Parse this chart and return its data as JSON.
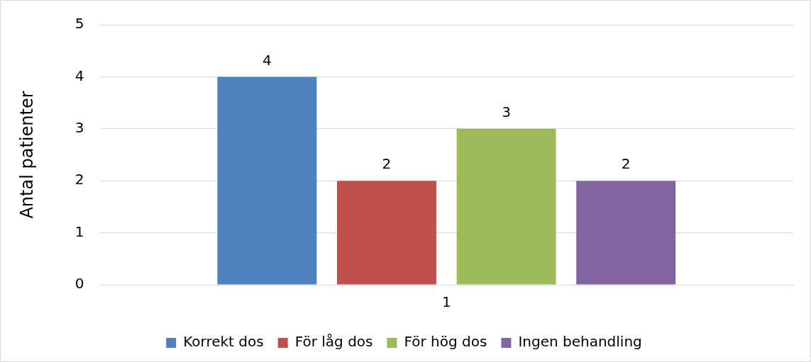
{
  "chart_data": {
    "type": "bar",
    "ylabel": "Antal patienter",
    "categories": [
      "1"
    ],
    "series": [
      {
        "name": "Korrekt dos",
        "color": "#4f81bd",
        "values": [
          4
        ]
      },
      {
        "name": "För låg dos",
        "color": "#c0504d",
        "values": [
          2
        ]
      },
      {
        "name": "För hög dos",
        "color": "#9bbb59",
        "values": [
          3
        ]
      },
      {
        "name": "Ingen behandling",
        "color": "#8064a2",
        "values": [
          2
        ]
      }
    ],
    "ylim": [
      0,
      5
    ],
    "yticks": [
      0,
      1,
      2,
      3,
      4,
      5
    ],
    "grid": "y",
    "legend": "bottom",
    "data_labels": true
  }
}
